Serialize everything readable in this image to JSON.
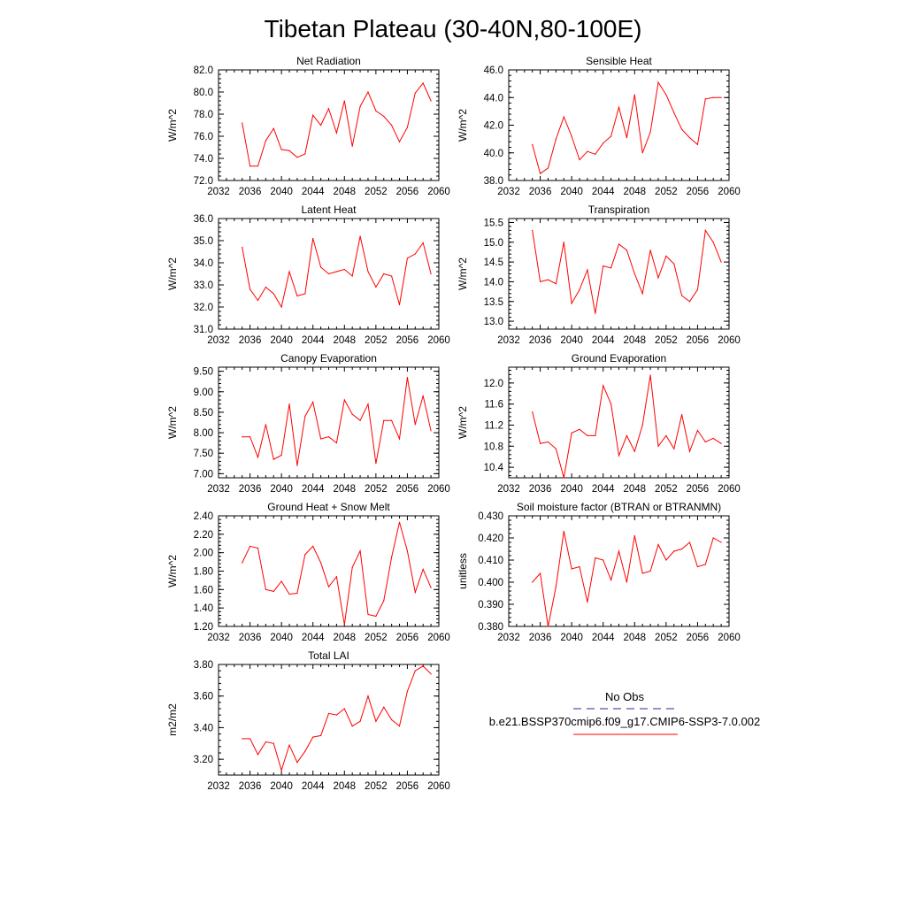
{
  "title": "Tibetan Plateau (30-40N,80-100E)",
  "x_tick_labels": [
    "2032",
    "2036",
    "2040",
    "2044",
    "2048",
    "2052",
    "2056",
    "2060"
  ],
  "colors": {
    "series": "#ff0000",
    "obs": "#2a2a9a",
    "axes": "#000000"
  },
  "legend": {
    "obs_label": "No Obs",
    "model_label": "b.e21.BSSP370cmip6.f09_g17.CMIP6-SSP3-7.0.002"
  },
  "chart_data": [
    {
      "type": "line",
      "title": "Net Radiation",
      "ylabel": "W/m^2",
      "xlim": [
        2032,
        2060
      ],
      "ylim": [
        72.0,
        82.0
      ],
      "ytick_labels": [
        "72.0",
        "74.0",
        "76.0",
        "78.0",
        "80.0",
        "82.0"
      ],
      "x": [
        2035,
        2036,
        2037,
        2038,
        2039,
        2040,
        2041,
        2042,
        2043,
        2044,
        2045,
        2046,
        2047,
        2048,
        2049,
        2050,
        2051,
        2052,
        2053,
        2054,
        2055,
        2056,
        2057,
        2058,
        2059
      ],
      "values": [
        77.2,
        73.3,
        73.3,
        75.6,
        76.7,
        74.8,
        74.7,
        74.1,
        74.4,
        77.9,
        77.0,
        78.5,
        76.3,
        79.2,
        75.1,
        78.7,
        80.0,
        78.3,
        77.8,
        77.0,
        75.5,
        76.8,
        79.9,
        80.8,
        79.2
      ]
    },
    {
      "type": "line",
      "title": "Sensible Heat",
      "ylabel": "W/m^2",
      "xlim": [
        2032,
        2060
      ],
      "ylim": [
        38.0,
        46.0
      ],
      "ytick_labels": [
        "38.0",
        "40.0",
        "42.0",
        "44.0",
        "46.0"
      ],
      "x": [
        2035,
        2036,
        2037,
        2038,
        2039,
        2040,
        2041,
        2042,
        2043,
        2044,
        2045,
        2046,
        2047,
        2048,
        2049,
        2050,
        2051,
        2052,
        2053,
        2054,
        2055,
        2056,
        2057,
        2058,
        2059
      ],
      "values": [
        40.6,
        38.5,
        38.9,
        41.0,
        42.6,
        41.2,
        39.5,
        40.1,
        39.9,
        40.7,
        41.2,
        43.3,
        41.1,
        44.2,
        40.0,
        41.5,
        45.1,
        44.2,
        42.9,
        41.7,
        41.1,
        40.6,
        43.9,
        44.0,
        44.0
      ]
    },
    {
      "type": "line",
      "title": "Latent Heat",
      "ylabel": "W/m^2",
      "xlim": [
        2032,
        2060
      ],
      "ylim": [
        31.0,
        36.0
      ],
      "ytick_labels": [
        "31.0",
        "32.0",
        "33.0",
        "34.0",
        "35.0",
        "36.0"
      ],
      "x": [
        2035,
        2036,
        2037,
        2038,
        2039,
        2040,
        2041,
        2042,
        2043,
        2044,
        2045,
        2046,
        2047,
        2048,
        2049,
        2050,
        2051,
        2052,
        2053,
        2054,
        2055,
        2056,
        2057,
        2058,
        2059
      ],
      "values": [
        34.7,
        32.8,
        32.3,
        32.9,
        32.6,
        32.0,
        33.6,
        32.5,
        32.6,
        35.1,
        33.8,
        33.5,
        33.6,
        33.7,
        33.4,
        35.2,
        33.6,
        32.9,
        33.5,
        33.4,
        32.1,
        34.2,
        34.4,
        34.9,
        33.5
      ]
    },
    {
      "type": "line",
      "title": "Transpiration",
      "ylabel": "W/m^2",
      "xlim": [
        2032,
        2060
      ],
      "ylim": [
        12.8,
        15.6
      ],
      "ytick_labels": [
        "13.0",
        "13.5",
        "14.0",
        "14.5",
        "15.0",
        "15.5"
      ],
      "ytick_values": [
        13.0,
        13.5,
        14.0,
        14.5,
        15.0,
        15.5
      ],
      "x": [
        2035,
        2036,
        2037,
        2038,
        2039,
        2040,
        2041,
        2042,
        2043,
        2044,
        2045,
        2046,
        2047,
        2048,
        2049,
        2050,
        2051,
        2052,
        2053,
        2054,
        2055,
        2056,
        2057,
        2058,
        2059
      ],
      "values": [
        15.3,
        14.0,
        14.05,
        13.95,
        15.0,
        13.45,
        13.8,
        14.3,
        13.2,
        14.4,
        14.35,
        14.95,
        14.8,
        14.2,
        13.7,
        14.8,
        14.1,
        14.65,
        14.45,
        13.65,
        13.5,
        13.8,
        15.3,
        15.0,
        14.5
      ]
    },
    {
      "type": "line",
      "title": "Canopy Evaporation",
      "ylabel": "W/m^2",
      "xlim": [
        2032,
        2060
      ],
      "ylim": [
        6.9,
        9.6
      ],
      "ytick_labels": [
        "7.00",
        "7.50",
        "8.00",
        "8.50",
        "9.00",
        "9.50"
      ],
      "ytick_values": [
        7.0,
        7.5,
        8.0,
        8.5,
        9.0,
        9.5
      ],
      "x": [
        2035,
        2036,
        2037,
        2038,
        2039,
        2040,
        2041,
        2042,
        2043,
        2044,
        2045,
        2046,
        2047,
        2048,
        2049,
        2050,
        2051,
        2052,
        2053,
        2054,
        2055,
        2056,
        2057,
        2058,
        2059
      ],
      "values": [
        7.9,
        7.9,
        7.4,
        8.2,
        7.35,
        7.45,
        8.7,
        7.2,
        8.4,
        8.75,
        7.85,
        7.9,
        7.75,
        8.8,
        8.45,
        8.3,
        8.7,
        7.25,
        8.3,
        8.3,
        7.85,
        9.35,
        8.2,
        8.9,
        8.05
      ]
    },
    {
      "type": "line",
      "title": "Ground Evaporation",
      "ylabel": "W/m^2",
      "xlim": [
        2032,
        2060
      ],
      "ylim": [
        10.2,
        12.3
      ],
      "ytick_labels": [
        "10.4",
        "10.8",
        "11.2",
        "11.6",
        "12.0"
      ],
      "ytick_values": [
        10.4,
        10.8,
        11.2,
        11.6,
        12.0
      ],
      "x": [
        2035,
        2036,
        2037,
        2038,
        2039,
        2040,
        2041,
        2042,
        2043,
        2044,
        2045,
        2046,
        2047,
        2048,
        2049,
        2050,
        2051,
        2052,
        2053,
        2054,
        2055,
        2056,
        2057,
        2058,
        2059
      ],
      "values": [
        11.45,
        10.85,
        10.88,
        10.75,
        10.2,
        11.05,
        11.12,
        11.0,
        11.0,
        11.95,
        11.6,
        10.62,
        11.0,
        10.7,
        11.2,
        12.15,
        10.8,
        11.0,
        10.75,
        11.4,
        10.7,
        11.1,
        10.88,
        10.95,
        10.85
      ]
    },
    {
      "type": "line",
      "title": "Ground Heat + Snow Melt",
      "ylabel": "W/m^2",
      "xlim": [
        2032,
        2060
      ],
      "ylim": [
        1.2,
        2.4
      ],
      "ytick_labels": [
        "1.20",
        "1.40",
        "1.60",
        "1.80",
        "2.00",
        "2.20",
        "2.40"
      ],
      "x": [
        2035,
        2036,
        2037,
        2038,
        2039,
        2040,
        2041,
        2042,
        2043,
        2044,
        2045,
        2046,
        2047,
        2048,
        2049,
        2050,
        2051,
        2052,
        2053,
        2054,
        2055,
        2056,
        2057,
        2058,
        2059
      ],
      "values": [
        1.89,
        2.07,
        2.05,
        1.6,
        1.58,
        1.69,
        1.55,
        1.56,
        1.98,
        2.07,
        1.89,
        1.63,
        1.74,
        1.22,
        1.84,
        2.02,
        1.33,
        1.31,
        1.48,
        1.95,
        2.33,
        2.02,
        1.57,
        1.82,
        1.62
      ]
    },
    {
      "type": "line",
      "title": "Soil moisture factor (BTRAN or BTRANMN)",
      "ylabel": "unitless",
      "xlim": [
        2032,
        2060
      ],
      "ylim": [
        0.38,
        0.43
      ],
      "ytick_labels": [
        "0.380",
        "0.390",
        "0.400",
        "0.410",
        "0.420",
        "0.430"
      ],
      "x": [
        2035,
        2036,
        2037,
        2038,
        2039,
        2040,
        2041,
        2042,
        2043,
        2044,
        2045,
        2046,
        2047,
        2048,
        2049,
        2050,
        2051,
        2052,
        2053,
        2054,
        2055,
        2056,
        2057,
        2058,
        2059
      ],
      "values": [
        0.4,
        0.404,
        0.38,
        0.398,
        0.423,
        0.406,
        0.407,
        0.391,
        0.411,
        0.41,
        0.401,
        0.414,
        0.4,
        0.421,
        0.404,
        0.405,
        0.417,
        0.41,
        0.414,
        0.415,
        0.418,
        0.407,
        0.408,
        0.42,
        0.418
      ]
    },
    {
      "type": "line",
      "title": "Total LAI",
      "ylabel": "m2/m2",
      "xlim": [
        2032,
        2060
      ],
      "ylim": [
        3.1,
        3.8
      ],
      "ytick_labels": [
        "3.20",
        "3.40",
        "3.60",
        "3.80"
      ],
      "ytick_values": [
        3.2,
        3.4,
        3.6,
        3.8
      ],
      "x": [
        2035,
        2036,
        2037,
        2038,
        2039,
        2040,
        2041,
        2042,
        2043,
        2044,
        2045,
        2046,
        2047,
        2048,
        2049,
        2050,
        2051,
        2052,
        2053,
        2054,
        2055,
        2056,
        2057,
        2058,
        2059
      ],
      "values": [
        3.33,
        3.33,
        3.23,
        3.31,
        3.3,
        3.13,
        3.29,
        3.18,
        3.25,
        3.34,
        3.35,
        3.49,
        3.48,
        3.52,
        3.41,
        3.44,
        3.6,
        3.44,
        3.53,
        3.45,
        3.41,
        3.63,
        3.76,
        3.79,
        3.74
      ]
    }
  ]
}
